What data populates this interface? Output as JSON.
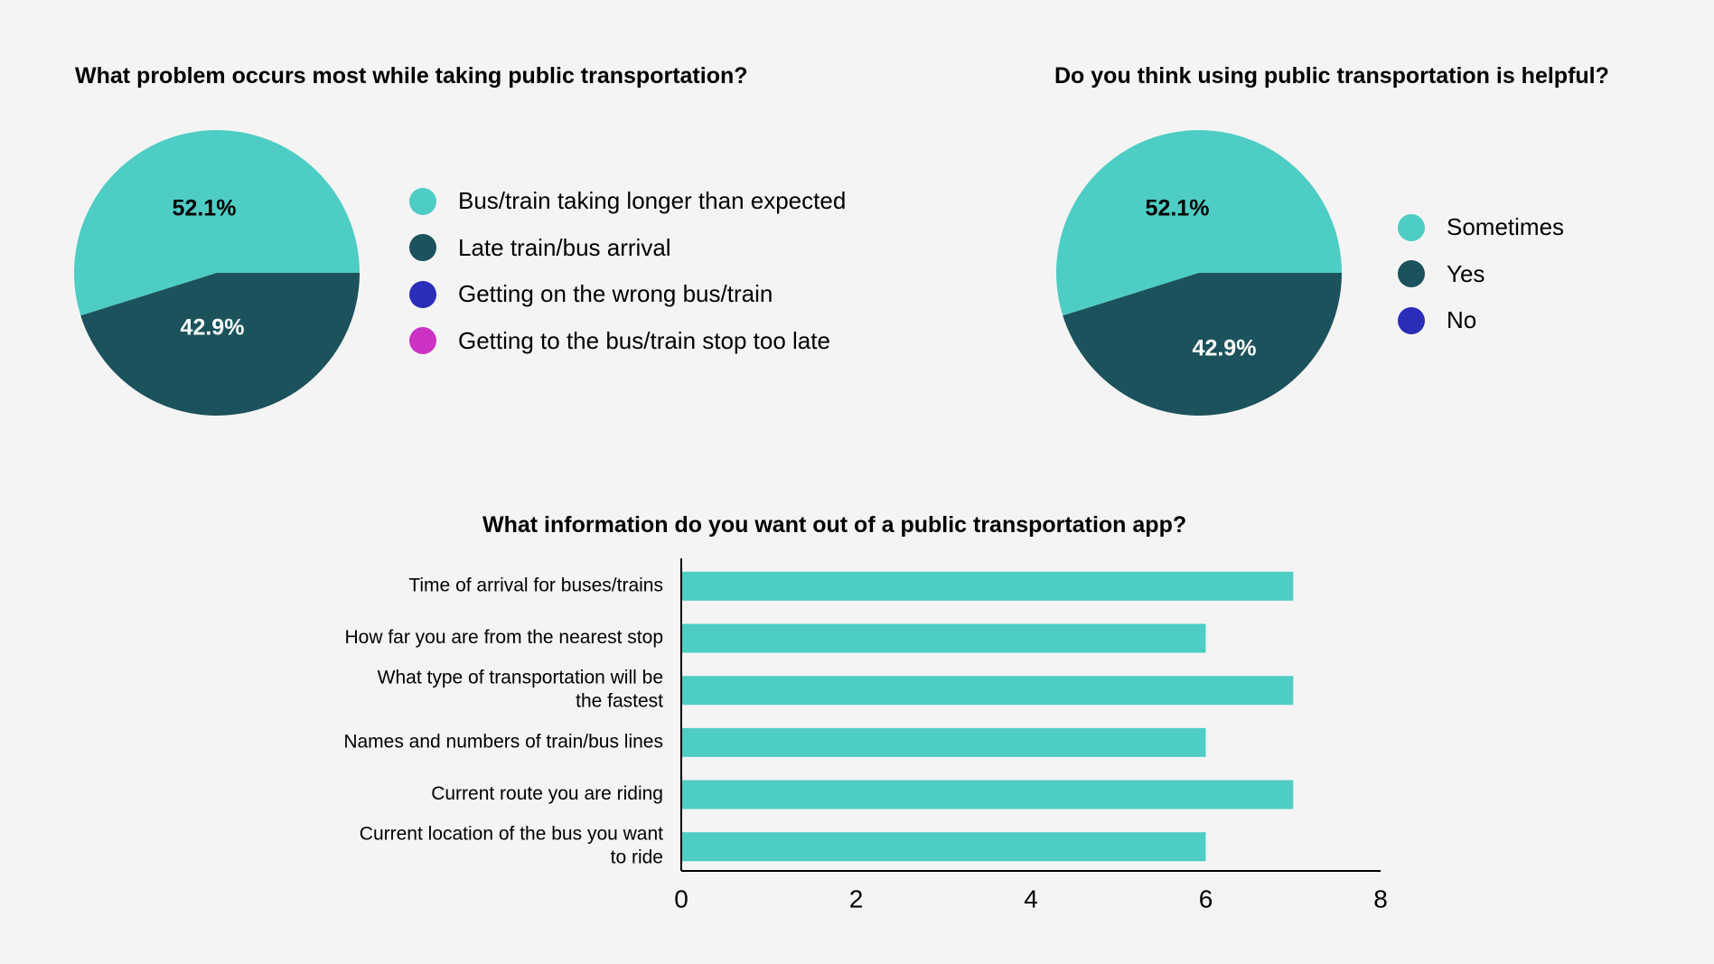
{
  "colors": {
    "teal": "#4ecdc4",
    "dark_teal": "#1b525b",
    "blue": "#2b2db8",
    "magenta": "#cc33c4",
    "background": "#f4f4f4"
  },
  "chart_data": [
    {
      "type": "pie",
      "title": "What problem occurs most while taking public transportation?",
      "slices": [
        {
          "label": "Bus/train taking longer than expected",
          "value": 52.1,
          "display": "52.1%",
          "color": "#4ecdc4"
        },
        {
          "label": "Late train/bus arrival",
          "value": 42.9,
          "display": "42.9%",
          "color": "#1b525b"
        },
        {
          "label": "Getting on the wrong bus/train",
          "value": 0,
          "display": "",
          "color": "#2b2db8"
        },
        {
          "label": "Getting to the bus/train stop too late",
          "value": 0,
          "display": "",
          "color": "#cc33c4"
        }
      ],
      "legend": "right"
    },
    {
      "type": "pie",
      "title": "Do you think using public transportation is helpful?",
      "slices": [
        {
          "label": "Sometimes",
          "value": 52.1,
          "display": "52.1%",
          "color": "#4ecdc4"
        },
        {
          "label": "Yes",
          "value": 42.9,
          "display": "42.9%",
          "color": "#1b525b"
        },
        {
          "label": "No",
          "value": 0,
          "display": "",
          "color": "#2b2db8"
        }
      ],
      "legend": "right"
    },
    {
      "type": "bar",
      "orientation": "horizontal",
      "title": "What information do you want out of a public transportation app?",
      "categories": [
        [
          "Time of arrival for buses/trains"
        ],
        [
          "How far you are from the nearest stop"
        ],
        [
          "What type of transportation will be",
          "the fastest"
        ],
        [
          "Names and numbers of train/bus lines"
        ],
        [
          "Current route you are riding"
        ],
        [
          "Current location of the bus you want",
          "to ride"
        ]
      ],
      "values": [
        7,
        6,
        7,
        6,
        7,
        6
      ],
      "xlim": [
        0,
        8
      ],
      "xticks": [
        "0",
        "2",
        "4",
        "6",
        "8"
      ],
      "color": "#4ecdc4",
      "grid": false
    }
  ]
}
